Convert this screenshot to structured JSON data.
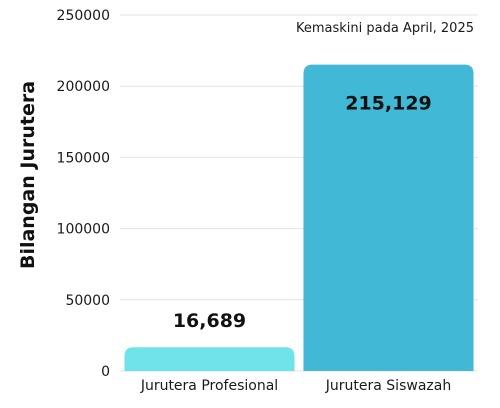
{
  "chart_data": {
    "type": "bar",
    "categories": [
      "Jurutera Profesional",
      "Jurutera Siswazah"
    ],
    "values": [
      16689,
      215129
    ],
    "value_labels": [
      "16,689",
      "215,129"
    ],
    "bar_colors": [
      "#6ee3e8",
      "#41b8d5"
    ],
    "ylabel": "Bilangan Jurutera",
    "xlabel": "",
    "ylim": [
      0,
      250000
    ],
    "yticks": [
      0,
      50000,
      100000,
      150000,
      200000,
      250000
    ],
    "ytick_labels": [
      "0",
      "50000",
      "100000",
      "150000",
      "200000",
      "250000"
    ],
    "annotation": "Kemaskini pada April, 2025",
    "grid": true,
    "grid_color": "#e3e3e3",
    "legend": "none"
  }
}
